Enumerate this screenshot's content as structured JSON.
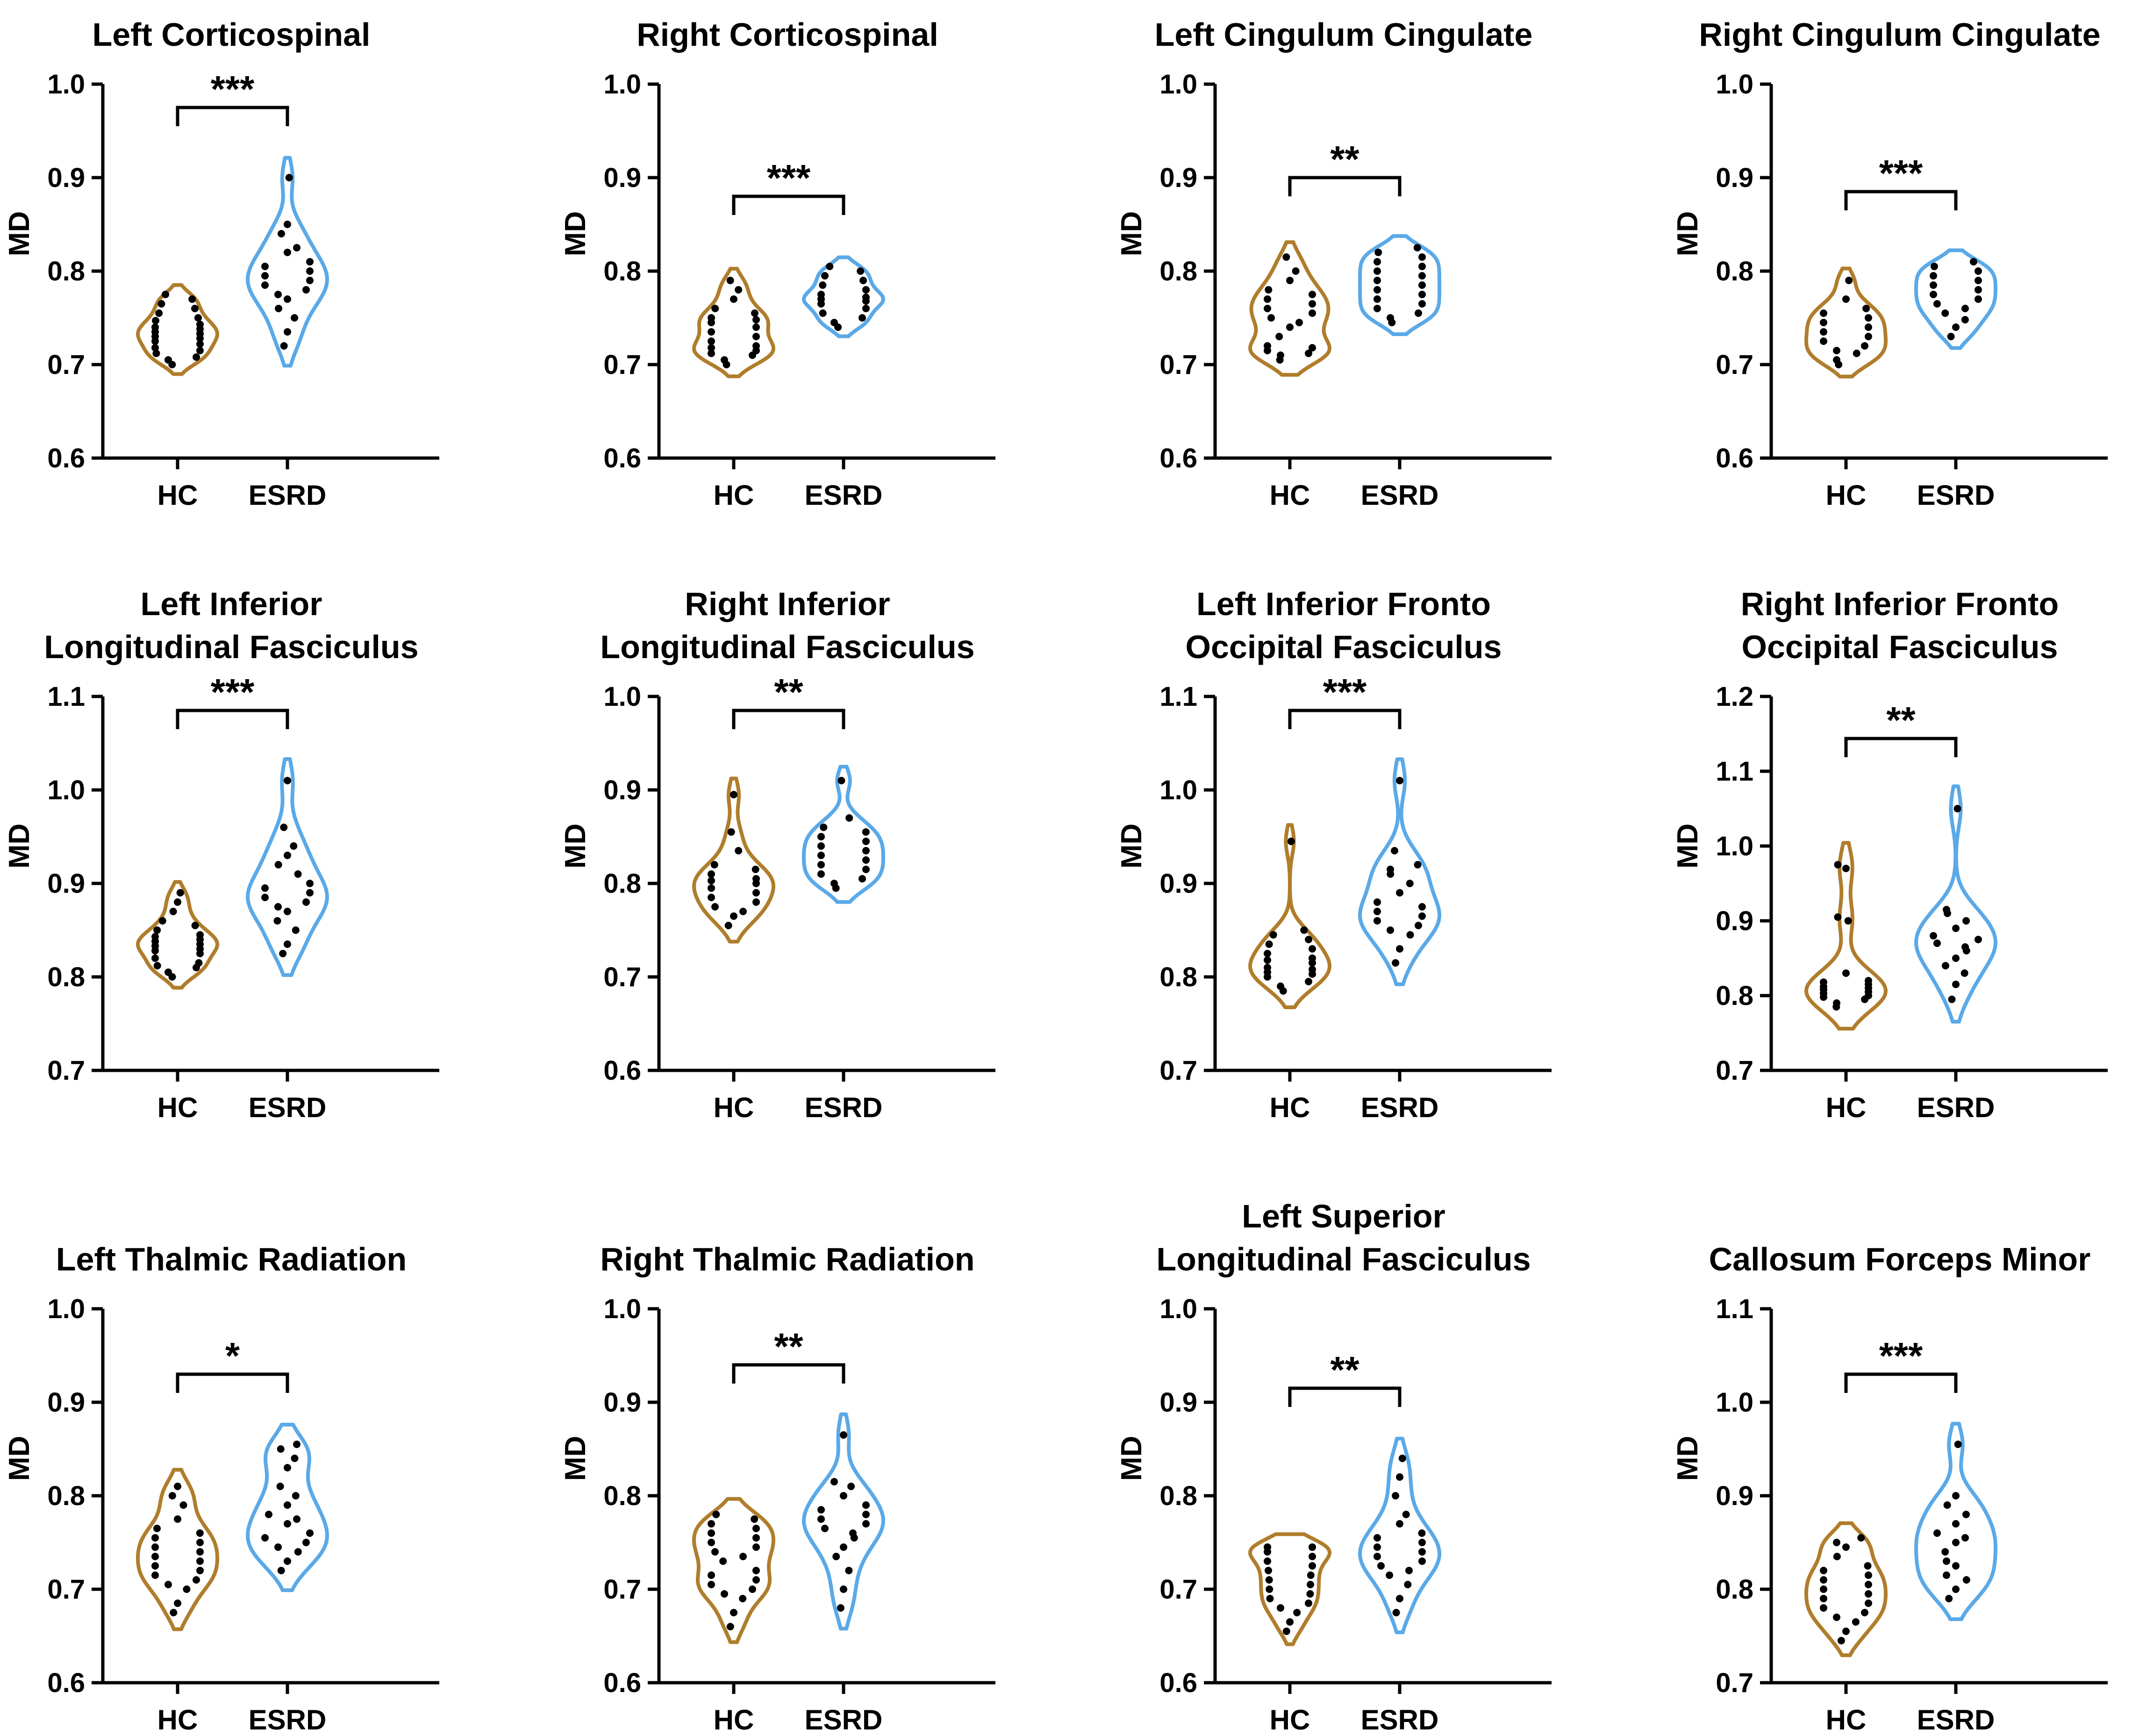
{
  "figure": {
    "y_axis_label": "MD",
    "groups": [
      "HC",
      "ESRD"
    ],
    "colors": {
      "HC": "#b07d2c",
      "ESRD": "#5aa9e8",
      "points": "#000000",
      "axes": "#000000"
    }
  },
  "chart_data": [
    {
      "type": "violin",
      "title_lines": [
        "Left Corticospinal"
      ],
      "ylabel": "MD",
      "categories": [
        "HC",
        "ESRD"
      ],
      "ylim": [
        0.6,
        1.0
      ],
      "yticks": [
        "0.6",
        "0.7",
        "0.8",
        "0.9",
        "1.0"
      ],
      "significance": "***",
      "series": [
        {
          "name": "HC",
          "values": [
            0.7,
            0.705,
            0.708,
            0.712,
            0.715,
            0.718,
            0.722,
            0.725,
            0.728,
            0.73,
            0.733,
            0.735,
            0.738,
            0.74,
            0.743,
            0.747,
            0.75,
            0.755,
            0.76,
            0.765,
            0.77,
            0.775
          ]
        },
        {
          "name": "ESRD",
          "values": [
            0.72,
            0.735,
            0.75,
            0.76,
            0.77,
            0.775,
            0.78,
            0.785,
            0.79,
            0.795,
            0.8,
            0.805,
            0.81,
            0.82,
            0.825,
            0.84,
            0.85,
            0.9
          ]
        }
      ]
    },
    {
      "type": "violin",
      "title_lines": [
        "Right Corticospinal"
      ],
      "ylabel": "MD",
      "categories": [
        "HC",
        "ESRD"
      ],
      "ylim": [
        0.6,
        1.0
      ],
      "yticks": [
        "0.6",
        "0.7",
        "0.8",
        "0.9",
        "1.0"
      ],
      "significance": "***",
      "series": [
        {
          "name": "HC",
          "values": [
            0.7,
            0.705,
            0.71,
            0.712,
            0.715,
            0.718,
            0.72,
            0.725,
            0.73,
            0.735,
            0.74,
            0.745,
            0.748,
            0.75,
            0.755,
            0.76,
            0.77,
            0.78,
            0.79
          ]
        },
        {
          "name": "ESRD",
          "values": [
            0.74,
            0.745,
            0.75,
            0.755,
            0.76,
            0.765,
            0.768,
            0.77,
            0.772,
            0.775,
            0.78,
            0.785,
            0.79,
            0.795,
            0.8,
            0.805
          ]
        }
      ]
    },
    {
      "type": "violin",
      "title_lines": [
        "Left Cingulum Cingulate"
      ],
      "ylabel": "MD",
      "categories": [
        "HC",
        "ESRD"
      ],
      "ylim": [
        0.6,
        1.0
      ],
      "yticks": [
        "0.6",
        "0.7",
        "0.8",
        "0.9",
        "1.0"
      ],
      "significance": "**",
      "series": [
        {
          "name": "HC",
          "values": [
            0.705,
            0.71,
            0.712,
            0.715,
            0.718,
            0.72,
            0.73,
            0.74,
            0.745,
            0.75,
            0.755,
            0.76,
            0.765,
            0.77,
            0.775,
            0.78,
            0.79,
            0.8,
            0.815
          ]
        },
        {
          "name": "ESRD",
          "values": [
            0.745,
            0.75,
            0.755,
            0.76,
            0.765,
            0.77,
            0.775,
            0.78,
            0.785,
            0.79,
            0.795,
            0.8,
            0.805,
            0.81,
            0.815,
            0.82,
            0.825
          ]
        }
      ]
    },
    {
      "type": "violin",
      "title_lines": [
        "Right Cingulum Cingulate"
      ],
      "ylabel": "MD",
      "categories": [
        "HC",
        "ESRD"
      ],
      "ylim": [
        0.6,
        1.0
      ],
      "yticks": [
        "0.6",
        "0.7",
        "0.8",
        "0.9",
        "1.0"
      ],
      "significance": "***",
      "series": [
        {
          "name": "HC",
          "values": [
            0.7,
            0.705,
            0.712,
            0.715,
            0.72,
            0.725,
            0.73,
            0.735,
            0.74,
            0.745,
            0.75,
            0.755,
            0.76,
            0.77,
            0.79
          ]
        },
        {
          "name": "ESRD",
          "values": [
            0.73,
            0.74,
            0.748,
            0.755,
            0.76,
            0.765,
            0.77,
            0.775,
            0.78,
            0.785,
            0.79,
            0.795,
            0.8,
            0.805,
            0.81
          ]
        }
      ]
    },
    {
      "type": "violin",
      "title_lines": [
        "Left Inferior",
        "Longitudinal Fasciculus"
      ],
      "ylabel": "MD",
      "categories": [
        "HC",
        "ESRD"
      ],
      "ylim": [
        0.7,
        1.1
      ],
      "yticks": [
        "0.7",
        "0.8",
        "0.9",
        "1.0",
        "1.1"
      ],
      "significance": "***",
      "series": [
        {
          "name": "HC",
          "values": [
            0.8,
            0.805,
            0.81,
            0.812,
            0.815,
            0.82,
            0.825,
            0.828,
            0.83,
            0.833,
            0.835,
            0.838,
            0.84,
            0.843,
            0.845,
            0.85,
            0.855,
            0.86,
            0.87,
            0.88,
            0.89
          ]
        },
        {
          "name": "ESRD",
          "values": [
            0.825,
            0.835,
            0.85,
            0.86,
            0.87,
            0.875,
            0.88,
            0.885,
            0.89,
            0.895,
            0.9,
            0.91,
            0.92,
            0.93,
            0.94,
            0.96,
            1.01
          ]
        }
      ]
    },
    {
      "type": "violin",
      "title_lines": [
        "Right Inferior",
        "Longitudinal Fasciculus"
      ],
      "ylabel": "MD",
      "categories": [
        "HC",
        "ESRD"
      ],
      "ylim": [
        0.6,
        1.0
      ],
      "yticks": [
        "0.6",
        "0.7",
        "0.8",
        "0.9",
        "1.0"
      ],
      "significance": "**",
      "series": [
        {
          "name": "HC",
          "values": [
            0.755,
            0.765,
            0.77,
            0.775,
            0.78,
            0.785,
            0.79,
            0.795,
            0.8,
            0.803,
            0.805,
            0.81,
            0.815,
            0.82,
            0.835,
            0.855,
            0.895
          ]
        },
        {
          "name": "ESRD",
          "values": [
            0.795,
            0.8,
            0.805,
            0.81,
            0.815,
            0.82,
            0.825,
            0.83,
            0.835,
            0.84,
            0.845,
            0.85,
            0.855,
            0.86,
            0.87,
            0.91
          ]
        }
      ]
    },
    {
      "type": "violin",
      "title_lines": [
        "Left Inferior Fronto",
        "Occipital Fasciculus"
      ],
      "ylabel": "MD",
      "categories": [
        "HC",
        "ESRD"
      ],
      "ylim": [
        0.7,
        1.1
      ],
      "yticks": [
        "0.7",
        "0.8",
        "0.9",
        "1.0",
        "1.1"
      ],
      "significance": "***",
      "series": [
        {
          "name": "HC",
          "values": [
            0.785,
            0.79,
            0.795,
            0.8,
            0.803,
            0.805,
            0.808,
            0.81,
            0.815,
            0.818,
            0.82,
            0.825,
            0.83,
            0.835,
            0.84,
            0.845,
            0.85,
            0.945
          ]
        },
        {
          "name": "ESRD",
          "values": [
            0.815,
            0.83,
            0.845,
            0.85,
            0.855,
            0.86,
            0.865,
            0.87,
            0.875,
            0.88,
            0.89,
            0.9,
            0.91,
            0.915,
            0.92,
            0.935,
            1.01
          ]
        }
      ]
    },
    {
      "type": "violin",
      "title_lines": [
        "Right Inferior Fronto",
        "Occipital Fasciculus"
      ],
      "ylabel": "MD",
      "categories": [
        "HC",
        "ESRD"
      ],
      "ylim": [
        0.7,
        1.2
      ],
      "yticks": [
        "0.7",
        "0.8",
        "0.9",
        "1.0",
        "1.1",
        "1.2"
      ],
      "significance": "**",
      "series": [
        {
          "name": "HC",
          "values": [
            0.785,
            0.79,
            0.795,
            0.798,
            0.8,
            0.803,
            0.805,
            0.808,
            0.81,
            0.812,
            0.815,
            0.818,
            0.82,
            0.83,
            0.9,
            0.905,
            0.97,
            0.975
          ]
        },
        {
          "name": "ESRD",
          "values": [
            0.795,
            0.815,
            0.83,
            0.84,
            0.85,
            0.86,
            0.865,
            0.87,
            0.875,
            0.88,
            0.89,
            0.9,
            0.91,
            0.915,
            1.05
          ]
        }
      ]
    },
    {
      "type": "violin",
      "title_lines": [
        "Left Thalmic Radiation"
      ],
      "ylabel": "MD",
      "categories": [
        "HC",
        "ESRD"
      ],
      "ylim": [
        0.6,
        1.0
      ],
      "yticks": [
        "0.6",
        "0.7",
        "0.8",
        "0.9",
        "1.0"
      ],
      "significance": "*",
      "series": [
        {
          "name": "HC",
          "values": [
            0.675,
            0.685,
            0.7,
            0.705,
            0.71,
            0.715,
            0.72,
            0.725,
            0.73,
            0.735,
            0.74,
            0.745,
            0.75,
            0.755,
            0.76,
            0.765,
            0.775,
            0.79,
            0.8,
            0.81
          ]
        },
        {
          "name": "ESRD",
          "values": [
            0.72,
            0.73,
            0.74,
            0.745,
            0.75,
            0.755,
            0.76,
            0.77,
            0.775,
            0.78,
            0.79,
            0.8,
            0.81,
            0.83,
            0.84,
            0.85,
            0.855
          ]
        }
      ]
    },
    {
      "type": "violin",
      "title_lines": [
        "Right Thalmic Radiation"
      ],
      "ylabel": "MD",
      "categories": [
        "HC",
        "ESRD"
      ],
      "ylim": [
        0.6,
        1.0
      ],
      "yticks": [
        "0.6",
        "0.7",
        "0.8",
        "0.9",
        "1.0"
      ],
      "significance": "**",
      "series": [
        {
          "name": "HC",
          "values": [
            0.66,
            0.675,
            0.69,
            0.695,
            0.7,
            0.705,
            0.71,
            0.715,
            0.72,
            0.73,
            0.735,
            0.74,
            0.745,
            0.75,
            0.755,
            0.76,
            0.765,
            0.77,
            0.775,
            0.78
          ]
        },
        {
          "name": "ESRD",
          "values": [
            0.68,
            0.7,
            0.72,
            0.735,
            0.745,
            0.755,
            0.76,
            0.765,
            0.77,
            0.775,
            0.78,
            0.785,
            0.79,
            0.8,
            0.81,
            0.815,
            0.865
          ]
        }
      ]
    },
    {
      "type": "violin",
      "title_lines": [
        "Left Superior",
        "Longitudinal Fasciculus"
      ],
      "ylabel": "MD",
      "categories": [
        "HC",
        "ESRD"
      ],
      "ylim": [
        0.6,
        1.0
      ],
      "yticks": [
        "0.6",
        "0.7",
        "0.8",
        "0.9",
        "1.0"
      ],
      "significance": "**",
      "series": [
        {
          "name": "HC",
          "values": [
            0.655,
            0.665,
            0.675,
            0.68,
            0.685,
            0.69,
            0.695,
            0.7,
            0.705,
            0.71,
            0.715,
            0.72,
            0.725,
            0.73,
            0.735,
            0.74,
            0.745,
            0.745,
            0.745,
            0.745,
            0.745
          ]
        },
        {
          "name": "ESRD",
          "values": [
            0.675,
            0.69,
            0.705,
            0.715,
            0.72,
            0.725,
            0.73,
            0.735,
            0.74,
            0.745,
            0.75,
            0.755,
            0.76,
            0.77,
            0.78,
            0.8,
            0.82,
            0.84
          ]
        }
      ]
    },
    {
      "type": "violin",
      "title_lines": [
        "Callosum Forceps Minor"
      ],
      "ylabel": "MD",
      "categories": [
        "HC",
        "ESRD"
      ],
      "ylim": [
        0.7,
        1.1
      ],
      "yticks": [
        "0.7",
        "0.8",
        "0.9",
        "1.0",
        "1.1"
      ],
      "significance": "***",
      "series": [
        {
          "name": "HC",
          "values": [
            0.745,
            0.755,
            0.765,
            0.77,
            0.775,
            0.78,
            0.785,
            0.79,
            0.795,
            0.8,
            0.805,
            0.81,
            0.815,
            0.82,
            0.825,
            0.835,
            0.845,
            0.85,
            0.855
          ]
        },
        {
          "name": "ESRD",
          "values": [
            0.79,
            0.8,
            0.81,
            0.815,
            0.825,
            0.83,
            0.84,
            0.85,
            0.855,
            0.86,
            0.87,
            0.88,
            0.89,
            0.9,
            0.955
          ]
        }
      ]
    }
  ]
}
